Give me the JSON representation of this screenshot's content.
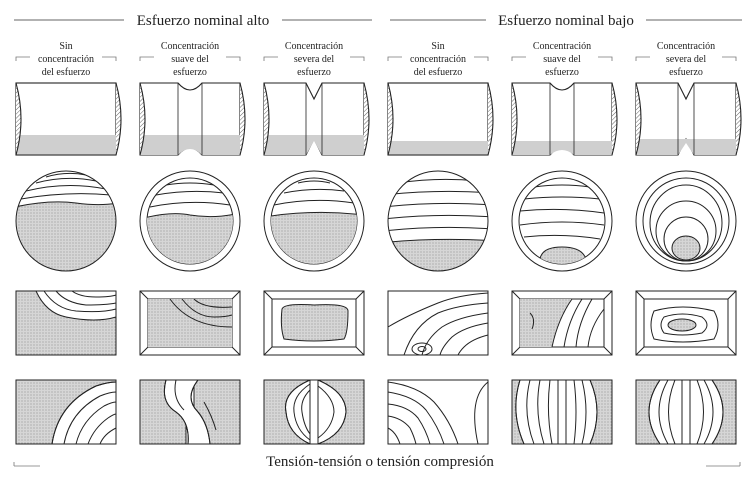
{
  "groups": {
    "high": "Esfuerzo nominal alto",
    "low": "Esfuerzo nominal bajo"
  },
  "columns": [
    {
      "id": "high-none",
      "label_lines": [
        "Sin",
        "concentración",
        "del esfuerzo"
      ]
    },
    {
      "id": "high-mild",
      "label_lines": [
        "Concentración",
        "suave del",
        "esfuerzo"
      ]
    },
    {
      "id": "high-severe",
      "label_lines": [
        "Concentración",
        "severa del",
        "esfuerzo"
      ]
    },
    {
      "id": "low-none",
      "label_lines": [
        "Sin",
        "concentración",
        "del esfuerzo"
      ]
    },
    {
      "id": "low-mild",
      "label_lines": [
        "Concentración",
        "suave del",
        "esfuerzo"
      ]
    },
    {
      "id": "low-severe",
      "label_lines": [
        "Concentración",
        "severa del",
        "esfuerzo"
      ]
    }
  ],
  "footer": "Tensión-tensión o tensión compresión",
  "colors": {
    "ink": "#222222",
    "shade": "#c9c9c9"
  }
}
